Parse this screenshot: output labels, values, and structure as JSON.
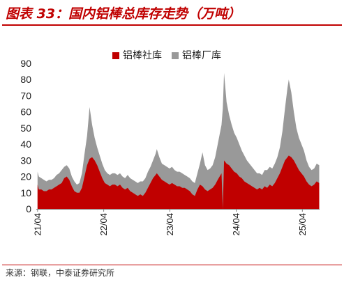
{
  "chart_data": {
    "type": "area",
    "stacked": true,
    "title": "图表 33：国内铝棒总库存走势（万吨）",
    "xlim": [
      "2021-03-25",
      "2025-07-05"
    ],
    "ylim": [
      0,
      90
    ],
    "yticks": [
      0,
      10,
      20,
      30,
      40,
      50,
      60,
      70,
      80,
      90
    ],
    "xticks": [
      "21/04",
      "22/04",
      "23/04",
      "24/04",
      "25/04"
    ],
    "grid": false,
    "legend": "top",
    "x": [
      "2021-04-01",
      "2021-04-08",
      "2021-04-22",
      "2021-05-06",
      "2021-05-20",
      "2021-06-03",
      "2021-06-17",
      "2021-07-01",
      "2021-07-15",
      "2021-07-29",
      "2021-08-12",
      "2021-08-26",
      "2021-09-09",
      "2021-09-23",
      "2021-10-07",
      "2021-10-21",
      "2021-11-04",
      "2021-11-18",
      "2021-12-02",
      "2021-12-16",
      "2021-12-30",
      "2022-01-13",
      "2022-01-27",
      "2022-02-10",
      "2022-02-24",
      "2022-03-10",
      "2022-03-24",
      "2022-04-07",
      "2022-04-21",
      "2022-05-05",
      "2022-05-19",
      "2022-06-02",
      "2022-06-16",
      "2022-06-30",
      "2022-07-14",
      "2022-07-28",
      "2022-08-11",
      "2022-08-25",
      "2022-09-08",
      "2022-09-22",
      "2022-10-06",
      "2022-10-20",
      "2022-11-03",
      "2022-11-17",
      "2022-12-01",
      "2022-12-15",
      "2022-12-29",
      "2023-01-12",
      "2023-01-19",
      "2023-02-02",
      "2023-02-16",
      "2023-03-02",
      "2023-03-16",
      "2023-03-30",
      "2023-04-13",
      "2023-04-27",
      "2023-05-11",
      "2023-05-25",
      "2023-06-08",
      "2023-06-22",
      "2023-07-06",
      "2023-07-20",
      "2023-08-03",
      "2023-08-17",
      "2023-08-31",
      "2023-09-14",
      "2023-09-28",
      "2023-10-12",
      "2023-10-26",
      "2023-11-09",
      "2023-11-23",
      "2023-12-07",
      "2023-12-21",
      "2024-01-11",
      "2024-01-18",
      "2024-01-25",
      "2024-02-08",
      "2024-02-22",
      "2024-03-07",
      "2024-03-21",
      "2024-04-04",
      "2024-04-18",
      "2024-05-02",
      "2024-05-16",
      "2024-05-30",
      "2024-06-13",
      "2024-06-27",
      "2024-07-11",
      "2024-07-25",
      "2024-08-08",
      "2024-08-22",
      "2024-09-05",
      "2024-09-19",
      "2024-10-03",
      "2024-10-17",
      "2024-10-31",
      "2024-11-14",
      "2024-11-28",
      "2024-12-12",
      "2024-12-26",
      "2025-01-09",
      "2025-01-16",
      "2025-01-30",
      "2025-02-13",
      "2025-02-27",
      "2025-03-13",
      "2025-03-27",
      "2025-04-10",
      "2025-04-24",
      "2025-05-08",
      "2025-05-22",
      "2025-06-05",
      "2025-06-19",
      "2025-07-03"
    ],
    "series": [
      {
        "name": "铝棒社库",
        "color": "#C00000",
        "values": [
          15,
          12,
          12,
          11,
          11,
          12,
          12,
          13,
          14,
          15,
          16,
          19,
          20,
          18,
          14,
          11,
          10,
          10,
          13,
          20,
          27,
          31,
          32,
          30,
          27,
          23,
          19,
          16,
          15,
          14,
          15,
          15,
          14,
          15,
          13,
          12,
          13,
          11,
          10,
          9,
          8,
          9,
          8,
          10,
          13,
          16,
          19,
          21,
          22,
          20,
          18,
          17,
          16,
          15,
          16,
          15,
          14,
          14,
          13,
          13,
          12,
          11,
          9,
          8,
          12,
          15,
          14,
          12,
          11,
          12,
          13,
          15,
          18,
          22,
          0,
          30,
          28,
          27,
          25,
          23,
          22,
          20,
          19,
          17,
          16,
          15,
          14,
          13,
          12,
          13,
          12,
          14,
          13,
          15,
          14,
          16,
          19,
          22,
          26,
          30,
          32,
          33,
          32,
          30,
          27,
          24,
          22,
          20,
          17,
          15,
          14,
          15,
          17,
          16
        ]
      },
      {
        "name": "铝棒厂库",
        "color": "#999999",
        "values": [
          8,
          8,
          7,
          7,
          6,
          6,
          6,
          6,
          7,
          7,
          8,
          7,
          7,
          7,
          6,
          6,
          5,
          6,
          9,
          14,
          18,
          32,
          20,
          14,
          11,
          10,
          9,
          8,
          7,
          7,
          7,
          7,
          7,
          7,
          7,
          7,
          8,
          8,
          8,
          8,
          8,
          8,
          9,
          9,
          10,
          10,
          11,
          13,
          15,
          12,
          10,
          10,
          10,
          10,
          10,
          9,
          9,
          9,
          9,
          8,
          8,
          8,
          8,
          8,
          10,
          13,
          21,
          15,
          13,
          13,
          14,
          17,
          22,
          30,
          62,
          54,
          38,
          31,
          27,
          24,
          22,
          20,
          17,
          16,
          14,
          13,
          12,
          11,
          10,
          9,
          9,
          10,
          11,
          11,
          11,
          12,
          13,
          16,
          22,
          32,
          43,
          47,
          40,
          30,
          23,
          20,
          18,
          16,
          13,
          11,
          10,
          10,
          11,
          11
        ]
      }
    ]
  },
  "source": "来源：钢联，中泰证券研究所",
  "colors": {
    "accent": "#C00000",
    "axis": "#7F7F7F"
  }
}
